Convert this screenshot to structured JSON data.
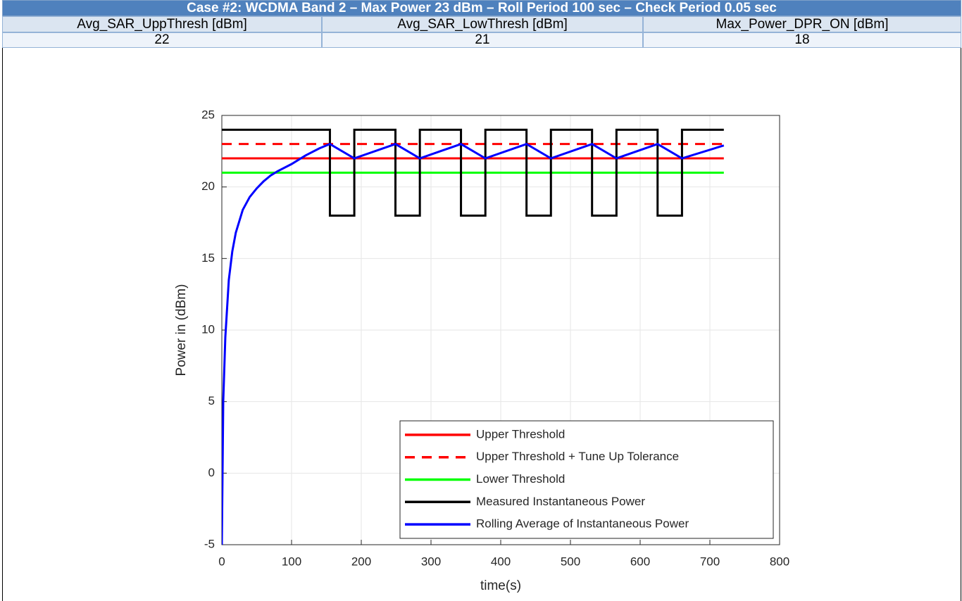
{
  "table": {
    "title": "Case #2: WCDMA Band 2 – Max Power 23 dBm – Roll Period 100 sec – Check Period 0.05 sec",
    "headers": [
      "Avg_SAR_UppThresh [dBm]",
      "Avg_SAR_LowThresh [dBm]",
      "Max_Power_DPR_ON [dBm]"
    ],
    "rows": [
      [
        22,
        21,
        18
      ]
    ]
  },
  "chart_data": {
    "type": "line",
    "xlabel": "time(s)",
    "ylabel": "Power in (dBm)",
    "xlim": [
      0,
      800
    ],
    "xticks": [
      0,
      100,
      200,
      300,
      400,
      500,
      600,
      700,
      800
    ],
    "ylim": [
      -5,
      25
    ],
    "yticks": [
      -5,
      0,
      5,
      10,
      15,
      20,
      25
    ],
    "grid": true,
    "legend": "lower-right",
    "series": [
      {
        "name": "Upper Threshold",
        "color": "#ff0000",
        "style": "solid",
        "x": [
          0,
          720
        ],
        "values": [
          22,
          22
        ]
      },
      {
        "name": "Upper Threshold + Tune Up Tolerance",
        "color": "#ff0000",
        "style": "dashed",
        "x": [
          0,
          720
        ],
        "values": [
          23,
          23
        ]
      },
      {
        "name": "Lower Threshold",
        "color": "#00ff00",
        "style": "solid",
        "x": [
          0,
          720
        ],
        "values": [
          21,
          21
        ]
      },
      {
        "name": "Measured Instantaneous Power",
        "color": "#000000",
        "style": "solid",
        "x": [
          0,
          155,
          155,
          190,
          190,
          249,
          249,
          284,
          284,
          343,
          343,
          378,
          378,
          437,
          437,
          472,
          472,
          531,
          531,
          566,
          566,
          625,
          625,
          660,
          660,
          720
        ],
        "values": [
          24,
          24,
          18,
          18,
          24,
          24,
          18,
          18,
          24,
          24,
          18,
          18,
          24,
          24,
          18,
          18,
          24,
          24,
          18,
          18,
          24,
          24,
          18,
          18,
          24,
          24
        ]
      },
      {
        "name": "Rolling Average of Instantaneous Power",
        "color": "#0000ff",
        "style": "solid",
        "x": [
          0,
          2,
          5,
          10,
          15,
          20,
          30,
          40,
          50,
          60,
          70,
          80,
          100,
          120,
          140,
          155,
          190,
          249,
          284,
          343,
          378,
          437,
          472,
          531,
          566,
          625,
          660,
          720
        ],
        "values": [
          -5,
          5,
          9.5,
          13.5,
          15.5,
          16.8,
          18.4,
          19.3,
          19.9,
          20.4,
          20.8,
          21.1,
          21.6,
          22.2,
          22.7,
          23,
          22,
          23,
          22,
          23,
          22,
          23,
          22,
          23,
          22,
          23,
          22,
          22.9
        ]
      }
    ]
  }
}
